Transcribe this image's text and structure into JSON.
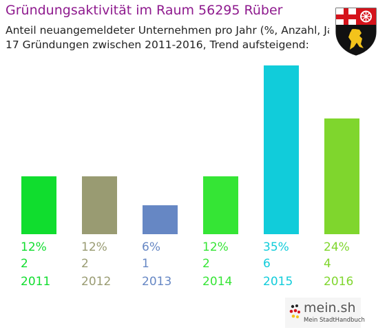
{
  "header": {
    "title": "Gründungsaktivität im Raum 56295 Rüber",
    "subtitle_line1": "Anteil neuangemeldeter Unternehmen pro Jahr (%, Anzahl, Jahr)",
    "subtitle_line2": "17 Gründungen zwischen 2011-2016, Trend aufsteigend:"
  },
  "coat_of_arms": {
    "icon": "rhineland-palatinate-coat-of-arms-icon"
  },
  "logo": {
    "name": "mein.sh",
    "tagline": "Mein StadtHandbuch",
    "icon": "germany-flag-dots-icon"
  },
  "chart_data": {
    "type": "bar",
    "categories": [
      "2011",
      "2012",
      "2013",
      "2014",
      "2015",
      "2016"
    ],
    "values": [
      12,
      12,
      6,
      12,
      35,
      24
    ],
    "value_labels": [
      "12%",
      "12%",
      "6%",
      "12%",
      "35%",
      "24%"
    ],
    "counts": [
      "2",
      "2",
      "1",
      "2",
      "6",
      "4"
    ],
    "colors": [
      "#10dd2e",
      "#999b72",
      "#6687c4",
      "#35e535",
      "#11ccda",
      "#7fd62d"
    ],
    "ylim": [
      0,
      35
    ],
    "grid": false,
    "legend": "none"
  }
}
